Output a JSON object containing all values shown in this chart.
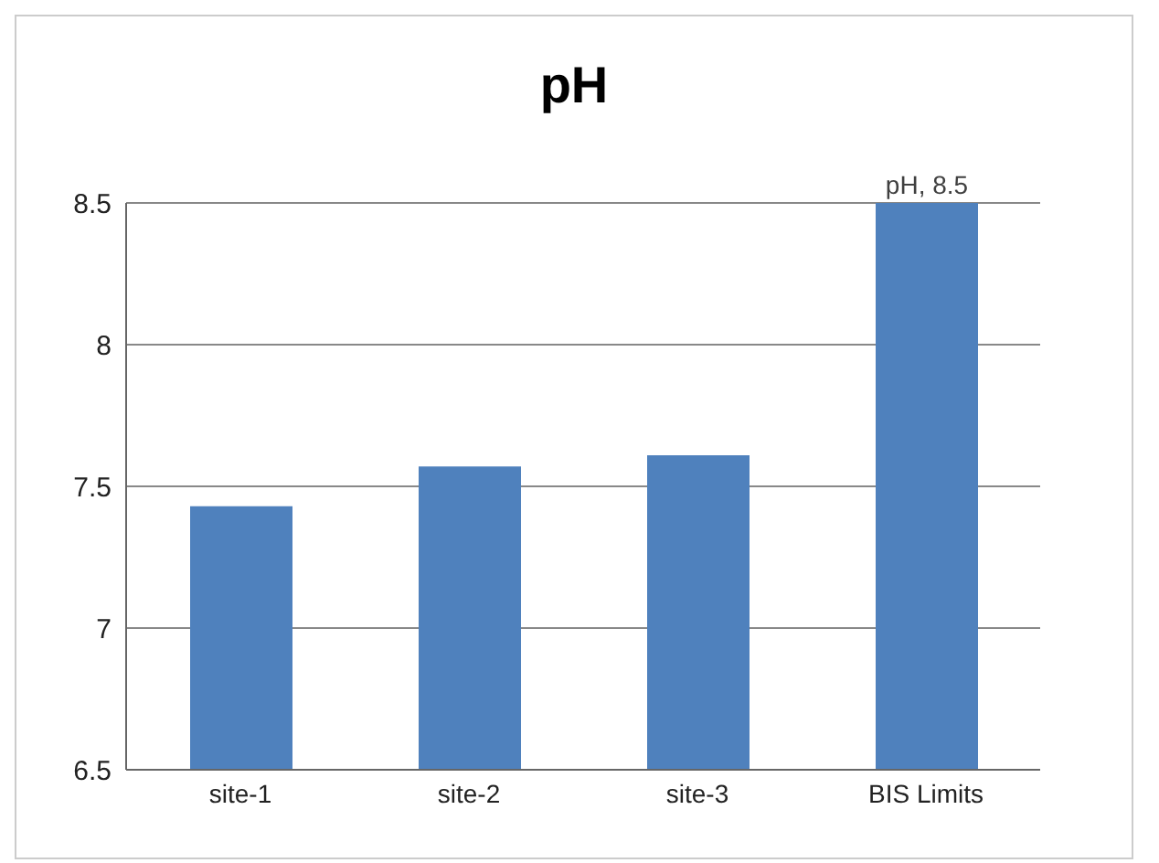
{
  "chart_data": {
    "type": "bar",
    "title": "pH",
    "categories": [
      "site-1",
      "site-2",
      "site-3",
      "BIS Limits"
    ],
    "values": [
      7.43,
      7.57,
      7.61,
      8.5
    ],
    "color": "#4f81bd",
    "value_labels": [
      null,
      null,
      null,
      "pH, 8.5"
    ],
    "ylim": [
      6.5,
      8.5
    ],
    "yticks": [
      6.5,
      7,
      7.5,
      8,
      8.5
    ],
    "grid": "y"
  }
}
